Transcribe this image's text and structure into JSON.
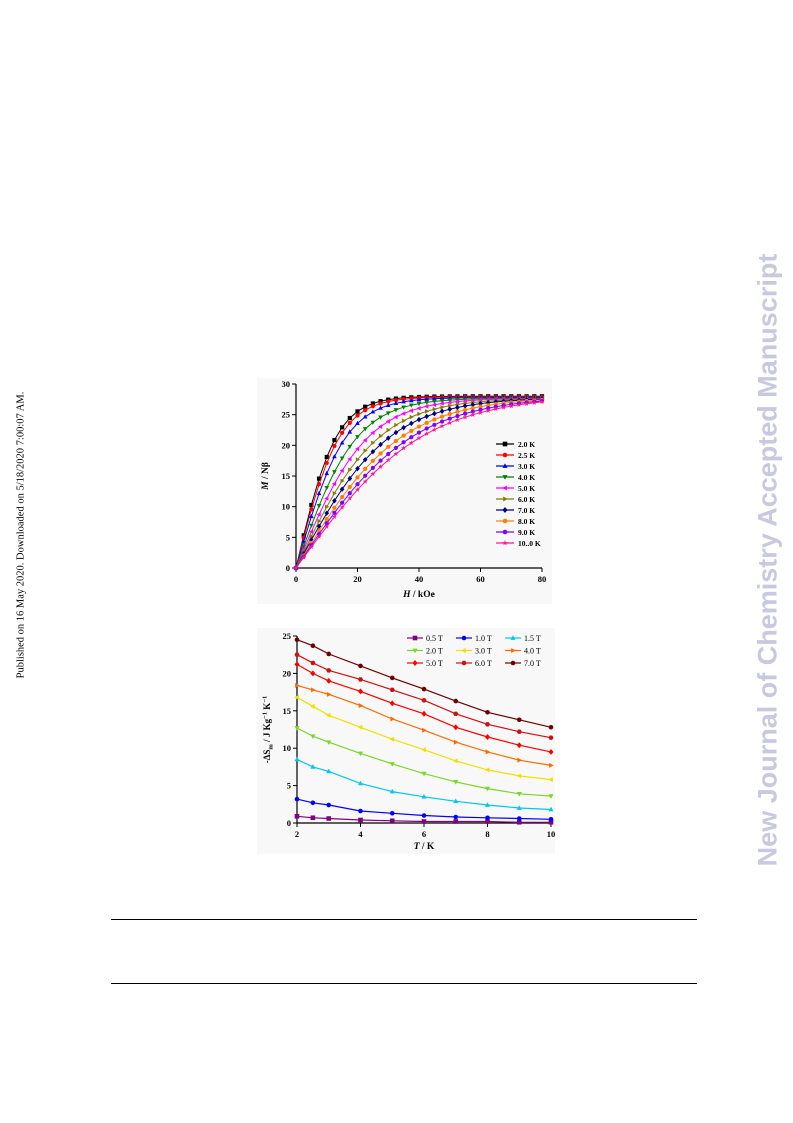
{
  "side_note": "Published on 16 May 2020. Downloaded on 5/18/2020 7:00:07 AM.",
  "watermark": {
    "text": "New Journal of Chemistry Accepted Manuscript",
    "color": "#c8c8e0"
  },
  "chart_data": [
    {
      "type": "line",
      "xlabel_italic": "H",
      "xlabel_unit": " / kOe",
      "ylabel_italic": "M",
      "ylabel_unit": " / Nβ",
      "xlim": [
        0,
        80
      ],
      "ylim": [
        0,
        30
      ],
      "xticks": [
        0,
        20,
        40,
        60,
        80
      ],
      "yticks": [
        0,
        5,
        10,
        15,
        20,
        25,
        30
      ],
      "x": [
        0,
        2.5,
        5,
        7.5,
        10,
        12.5,
        15,
        17.5,
        20,
        22.5,
        25,
        27.5,
        30,
        32.5,
        35,
        37.5,
        40,
        42.5,
        45,
        47.5,
        50,
        52.5,
        55,
        57.5,
        60,
        62.5,
        65,
        67.5,
        70,
        72.5,
        75,
        77.5,
        80
      ],
      "legend_position": "right",
      "series": [
        {
          "name": "2.0 K",
          "color": "#000000",
          "marker": "square",
          "msat": 28.0,
          "h0": 13.0
        },
        {
          "name": "2.5 K",
          "color": "#ff0000",
          "marker": "circle",
          "msat": 27.9,
          "h0": 14.0
        },
        {
          "name": "3.0 K",
          "color": "#0000ff",
          "marker": "triangle-up",
          "msat": 27.8,
          "h0": 16.0
        },
        {
          "name": "4.0 K",
          "color": "#008000",
          "marker": "triangle-down",
          "msat": 27.7,
          "h0": 19.5
        },
        {
          "name": "5.0 K",
          "color": "#ff00ff",
          "marker": "triangle-left",
          "msat": 27.7,
          "h0": 23.0
        },
        {
          "name": "6.0 K",
          "color": "#808000",
          "marker": "triangle-right",
          "msat": 27.7,
          "h0": 26.5
        },
        {
          "name": "7.0 K",
          "color": "#000080",
          "marker": "diamond",
          "msat": 27.8,
          "h0": 30.0
        },
        {
          "name": "8.0 K",
          "color": "#ff8000",
          "marker": "hexagon",
          "msat": 27.9,
          "h0": 34.0
        },
        {
          "name": "9.0 K",
          "color": "#8000ff",
          "marker": "circle",
          "msat": 28.0,
          "h0": 37.5
        },
        {
          "name": "10..0 K",
          "color": "#ff1493",
          "marker": "star",
          "msat": 28.2,
          "h0": 41.0
        }
      ]
    },
    {
      "type": "line",
      "xlabel_italic": "T",
      "xlabel_unit": " / K",
      "ylabel": "-ΔSm / J Kg-1 K-1",
      "ylabel_parts": {
        "prefix": "-ΔS",
        "sub": "m",
        "mid": " / J Kg",
        "sup1": "−1",
        "end": " K",
        "sup2": "−1"
      },
      "xlim": [
        2,
        10
      ],
      "ylim": [
        0,
        25
      ],
      "xticks": [
        2,
        4,
        6,
        8,
        10
      ],
      "yticks": [
        0,
        5,
        10,
        15,
        20,
        25
      ],
      "x": [
        2,
        2.5,
        3,
        4,
        5,
        6,
        7,
        8,
        9,
        10
      ],
      "legend_position": "top-right",
      "series": [
        {
          "name": "0.5 T",
          "color": "#800080",
          "marker": "square",
          "values": [
            0.9,
            0.7,
            0.6,
            0.4,
            0.3,
            0.2,
            0.2,
            0.2,
            0.1,
            0.1
          ]
        },
        {
          "name": "1.0 T",
          "color": "#0000ff",
          "marker": "circle",
          "values": [
            3.2,
            2.7,
            2.4,
            1.6,
            1.3,
            1.0,
            0.8,
            0.7,
            0.6,
            0.5
          ]
        },
        {
          "name": "1.5 T",
          "color": "#00c8e6",
          "marker": "triangle-up",
          "values": [
            8.5,
            7.5,
            6.9,
            5.3,
            4.2,
            3.5,
            2.9,
            2.4,
            2.0,
            1.8
          ]
        },
        {
          "name": "2.0 T",
          "color": "#7cd62a",
          "marker": "triangle-down",
          "values": [
            12.7,
            11.6,
            10.8,
            9.3,
            7.9,
            6.6,
            5.5,
            4.6,
            3.9,
            3.6
          ]
        },
        {
          "name": "3.0 T",
          "color": "#f0e000",
          "marker": "triangle-left",
          "values": [
            16.8,
            15.6,
            14.4,
            12.8,
            11.2,
            9.8,
            8.3,
            7.1,
            6.3,
            5.8
          ]
        },
        {
          "name": "4.0 T",
          "color": "#ff6a00",
          "marker": "triangle-right",
          "values": [
            18.4,
            17.8,
            17.2,
            15.7,
            13.9,
            12.4,
            10.8,
            9.5,
            8.4,
            7.7
          ]
        },
        {
          "name": "5.0 T",
          "color": "#ff0000",
          "marker": "diamond",
          "values": [
            21.2,
            20.0,
            19.0,
            17.6,
            16.0,
            14.6,
            12.8,
            11.5,
            10.4,
            9.5
          ]
        },
        {
          "name": "6.0 T",
          "color": "#cc1111",
          "marker": "hexagon",
          "values": [
            22.5,
            21.4,
            20.4,
            19.2,
            17.8,
            16.4,
            14.6,
            13.2,
            12.2,
            11.4
          ]
        },
        {
          "name": "7.0 T",
          "color": "#6b0000",
          "marker": "circle",
          "values": [
            24.5,
            23.7,
            22.6,
            21.0,
            19.4,
            17.9,
            16.3,
            14.8,
            13.8,
            12.8
          ]
        }
      ]
    }
  ]
}
